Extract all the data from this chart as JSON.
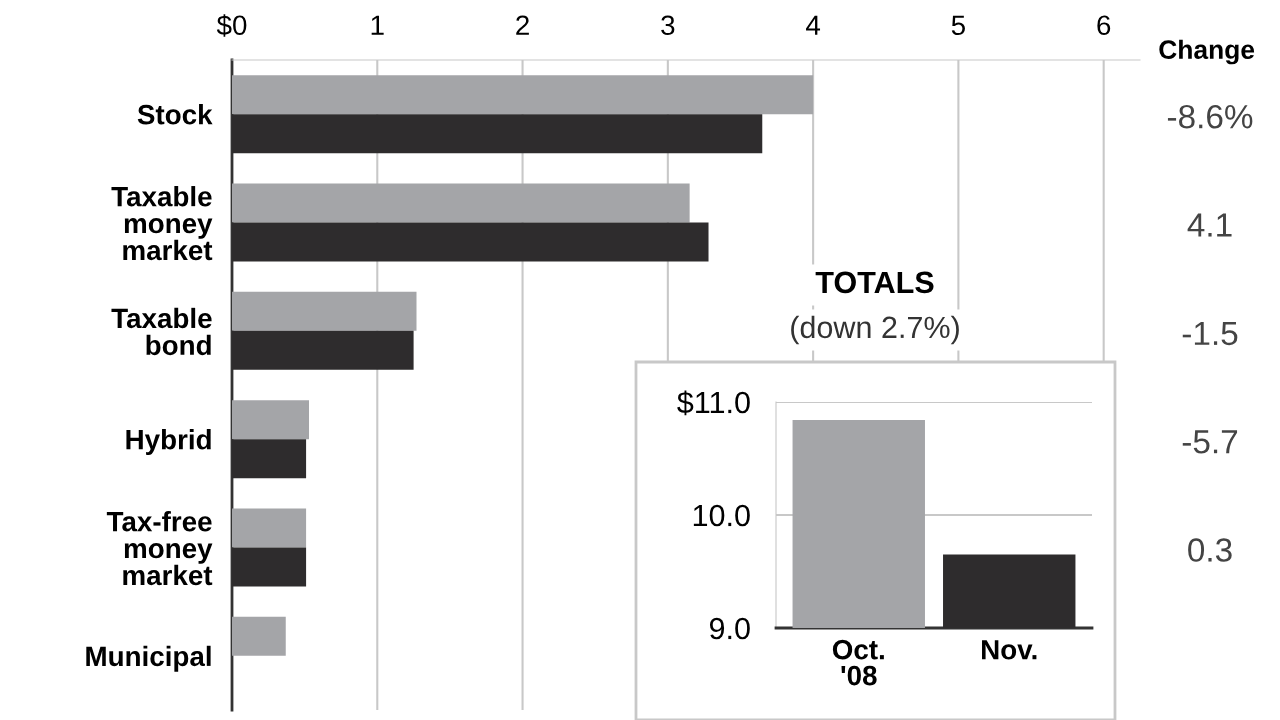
{
  "chart_data": [
    {
      "type": "bar",
      "orientation": "horizontal",
      "categories": [
        "Stock",
        "Taxable\nmoney\nmarket",
        "Taxable\nbond",
        "Hybrid",
        "Tax-free\nmoney\nmarket",
        "Municipal"
      ],
      "series": [
        {
          "color": "#a4a5a8",
          "values": [
            4.0,
            3.15,
            1.27,
            0.53,
            0.51,
            0.37
          ]
        },
        {
          "color": "#2e2c2d",
          "values": [
            3.65,
            3.28,
            1.25,
            0.51,
            0.51,
            null
          ]
        }
      ],
      "xlim": [
        0,
        6.25
      ],
      "xticks": [
        {
          "value": 0,
          "label": "$0"
        },
        1,
        2,
        3,
        4,
        5,
        6
      ],
      "grid": "x",
      "annotations": [
        "Change",
        "-8.6%",
        "4.1",
        "-1.5",
        "-5.7",
        "0.3"
      ]
    },
    {
      "type": "bar",
      "title": "TOTALS",
      "subtitle": "(down 2.7%)",
      "categories": [
        "Oct.\n'08",
        "Nov."
      ],
      "values": [
        10.84,
        9.65
      ],
      "colors": [
        "#a4a5a8",
        "#2e2c2d"
      ],
      "ylim": [
        9.0,
        11.0
      ],
      "yticks": [
        {
          "value": 9.0,
          "label": "9.0"
        },
        {
          "value": 10.0,
          "label": "10.0"
        },
        {
          "value": 11.0,
          "label": "$11.0"
        }
      ],
      "grid": "y"
    }
  ]
}
